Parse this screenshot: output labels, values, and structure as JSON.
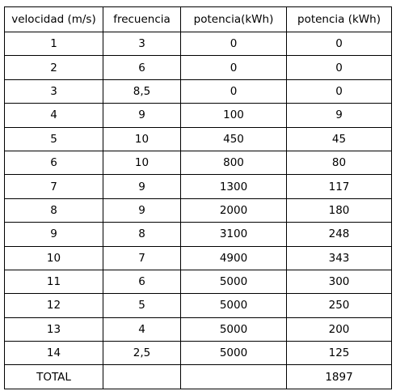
{
  "table": {
    "header": [
      "velocidad (m/s)",
      "frecuencia",
      "potencia(kWh)",
      "potencia (kWh)"
    ],
    "rows": [
      [
        "1",
        "3",
        "0",
        "0"
      ],
      [
        "2",
        "6",
        "0",
        "0"
      ],
      [
        "3",
        "8,5",
        "0",
        "0"
      ],
      [
        "4",
        "9",
        "100",
        "9"
      ],
      [
        "5",
        "10",
        "450",
        "45"
      ],
      [
        "6",
        "10",
        "800",
        "80"
      ],
      [
        "7",
        "9",
        "1300",
        "117"
      ],
      [
        "8",
        "9",
        "2000",
        "180"
      ],
      [
        "9",
        "8",
        "3100",
        "248"
      ],
      [
        "10",
        "7",
        "4900",
        "343"
      ],
      [
        "11",
        "6",
        "5000",
        "300"
      ],
      [
        "12",
        "5",
        "5000",
        "250"
      ],
      [
        "13",
        "4",
        "5000",
        "200"
      ],
      [
        "14",
        "2,5",
        "5000",
        "125"
      ]
    ],
    "footer": {
      "label": "TOTAL",
      "total": "1897"
    }
  }
}
